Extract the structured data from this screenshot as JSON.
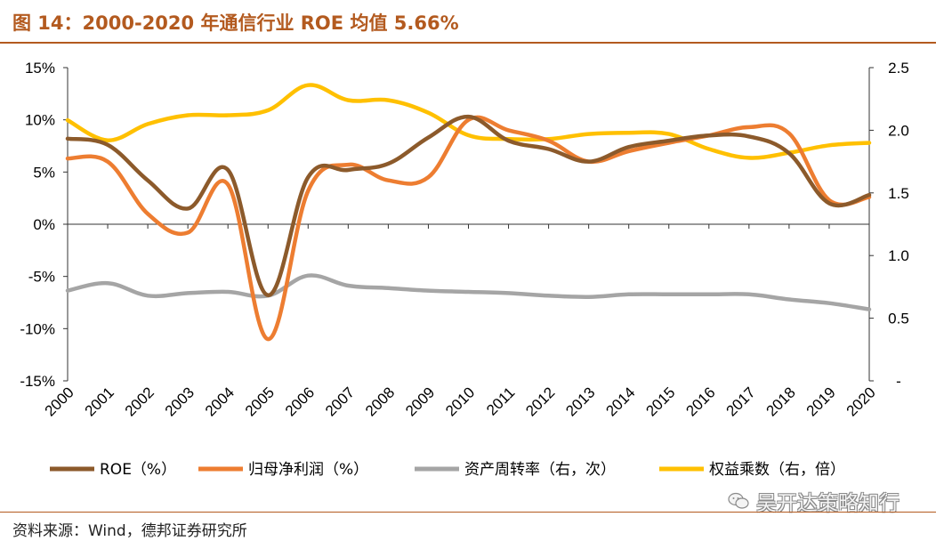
{
  "figure": {
    "title": "图 14：2000-2020 年通信行业 ROE 均值 5.66%",
    "source": "资料来源：Wind，德邦证券研究所",
    "watermark": "吴开达策略知行",
    "watermark_icon": "wechat-icon"
  },
  "chart_data": {
    "type": "line",
    "title": "2000-2020 年通信行业 ROE 均值 5.66%",
    "categories": [
      "2000",
      "2001",
      "2002",
      "2003",
      "2004",
      "2005",
      "2006",
      "2007",
      "2008",
      "2009",
      "2010",
      "2011",
      "2012",
      "2013",
      "2014",
      "2015",
      "2016",
      "2017",
      "2018",
      "2019",
      "2020"
    ],
    "y_left": {
      "ylim": [
        -15,
        15
      ],
      "ticks": [
        "15%",
        "10%",
        "5%",
        "0%",
        "-5%",
        "-10%",
        "-15%"
      ],
      "tick_values": [
        15,
        10,
        5,
        0,
        -5,
        -10,
        -15
      ]
    },
    "y_right": {
      "ylim": [
        0.0,
        2.5
      ],
      "ticks": [
        "2.5",
        "2.0",
        "1.5",
        "1.0",
        "0.5",
        "-"
      ],
      "tick_values": [
        2.5,
        2.0,
        1.5,
        1.0,
        0.5,
        0.0
      ]
    },
    "series": [
      {
        "name": "ROE（%）",
        "axis": "left",
        "color": "#8c5a2b",
        "values": [
          8.2,
          7.6,
          4.2,
          1.5,
          5.2,
          -6.8,
          4.5,
          5.2,
          5.8,
          8.3,
          10.3,
          8.0,
          7.2,
          6.0,
          7.4,
          8.0,
          8.5,
          8.4,
          6.8,
          2.0,
          2.8
        ]
      },
      {
        "name": "归母净利润（%）",
        "axis": "left",
        "color": "#ed7d31",
        "values": [
          6.3,
          6.0,
          1.0,
          -0.8,
          3.8,
          -11.0,
          3.2,
          5.7,
          4.2,
          4.5,
          10.0,
          9.0,
          8.0,
          6.0,
          7.0,
          7.8,
          8.5,
          9.3,
          8.7,
          2.3,
          2.6
        ]
      },
      {
        "name": "资产周转率（右，次）",
        "axis": "right",
        "color": "#a5a5a5",
        "values": [
          0.72,
          0.78,
          0.68,
          0.7,
          0.71,
          0.68,
          0.84,
          0.76,
          0.74,
          0.72,
          0.71,
          0.7,
          0.68,
          0.67,
          0.69,
          0.69,
          0.69,
          0.69,
          0.65,
          0.62,
          0.57
        ]
      },
      {
        "name": "权益乘数（右，倍）",
        "axis": "right",
        "color": "#ffc000",
        "values": [
          2.08,
          1.92,
          2.05,
          2.12,
          2.12,
          2.16,
          2.36,
          2.24,
          2.24,
          2.14,
          1.96,
          1.93,
          1.93,
          1.97,
          1.98,
          1.97,
          1.85,
          1.78,
          1.82,
          1.88,
          1.9
        ]
      }
    ],
    "grid": false,
    "legend_position": "bottom"
  }
}
